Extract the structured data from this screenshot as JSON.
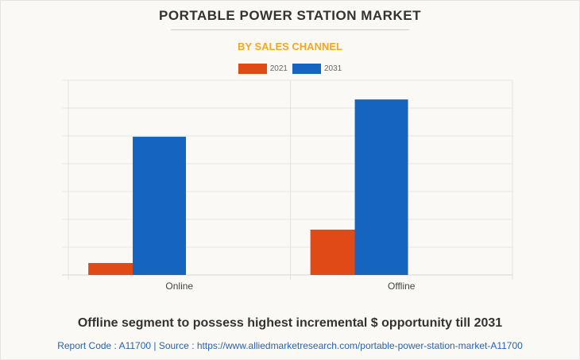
{
  "header": {
    "title": "PORTABLE POWER STATION MARKET",
    "subtitle": "BY SALES CHANNEL"
  },
  "footer": {
    "headline": "Offline segment to possess highest incremental $ opportunity till 2031",
    "source": "Report Code : A11700  |  Source : https://www.alliedmarketresearch.com/portable-power-station-market-A11700"
  },
  "chart_data": {
    "type": "bar",
    "title": "PORTABLE POWER STATION MARKET",
    "subtitle": "BY SALES CHANNEL",
    "categories": [
      "Online",
      "Offline"
    ],
    "series": [
      {
        "name": "2021",
        "color": "#e04a16",
        "values": [
          0.43,
          1.63
        ]
      },
      {
        "name": "2031",
        "color": "#1565c0",
        "values": [
          4.97,
          6.31
        ]
      }
    ],
    "xlabel": "",
    "ylabel": "",
    "ylim": [
      0,
      7
    ],
    "grid": true,
    "legend": "top-center",
    "y_tick_labels_shown": false
  }
}
